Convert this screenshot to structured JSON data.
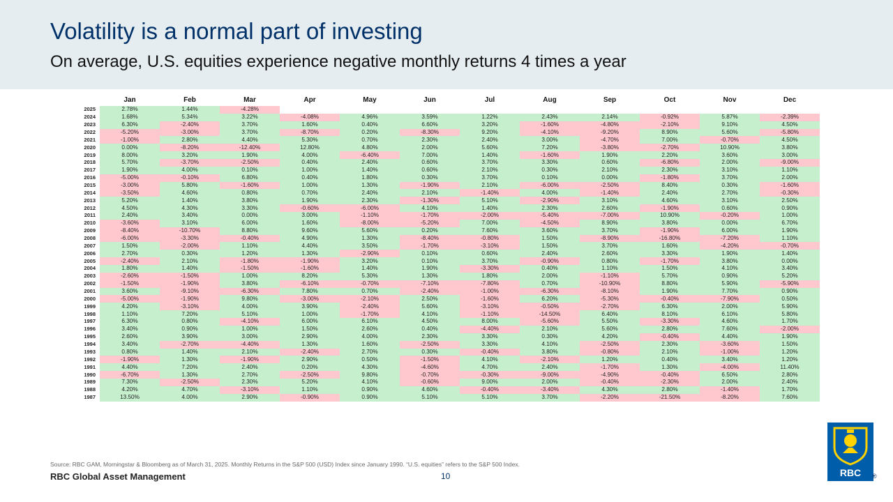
{
  "header": {
    "title": "Volatility is a normal part of investing",
    "subtitle": "On average, U.S. equities experience negative monthly returns 4 times a year"
  },
  "table": {
    "months": [
      "Jan",
      "Feb",
      "Mar",
      "Apr",
      "May",
      "Jun",
      "Jul",
      "Aug",
      "Sep",
      "Oct",
      "Nov",
      "Dec"
    ],
    "rows": [
      {
        "year": "2025",
        "values": [
          "2.78%",
          "1.44%",
          "-4.28%",
          null,
          null,
          null,
          null,
          null,
          null,
          null,
          null,
          null
        ]
      },
      {
        "year": "2024",
        "values": [
          "1.68%",
          "5.34%",
          "3.22%",
          "-4.08%",
          "4.96%",
          "3.59%",
          "1.22%",
          "2.43%",
          "2.14%",
          "-0.92%",
          "5.87%",
          "-2.39%"
        ]
      },
      {
        "year": "2023",
        "values": [
          "6.30%",
          "-2.40%",
          "3.70%",
          "1.60%",
          "0.40%",
          "6.60%",
          "3.20%",
          "-1.60%",
          "-4.80%",
          "-2.10%",
          "9.10%",
          "4.50%"
        ]
      },
      {
        "year": "2022",
        "values": [
          "-5.20%",
          "-3.00%",
          "3.70%",
          "-8.70%",
          "0.20%",
          "-8.30%",
          "9.20%",
          "-4.10%",
          "-9.20%",
          "8.90%",
          "5.60%",
          "-5.80%"
        ]
      },
      {
        "year": "2021",
        "values": [
          "-1.00%",
          "2.80%",
          "4.40%",
          "5.30%",
          "0.70%",
          "2.30%",
          "2.40%",
          "3.00%",
          "-4.70%",
          "7.00%",
          "-0.70%",
          "4.50%"
        ]
      },
      {
        "year": "2020",
        "values": [
          "0.00%",
          "-8.20%",
          "-12.40%",
          "12.80%",
          "4.80%",
          "2.00%",
          "5.60%",
          "7.20%",
          "-3.80%",
          "-2.70%",
          "10.90%",
          "3.80%"
        ]
      },
      {
        "year": "2019",
        "values": [
          "8.00%",
          "3.20%",
          "1.90%",
          "4.00%",
          "-6.40%",
          "7.00%",
          "1.40%",
          "-1.60%",
          "1.90%",
          "2.20%",
          "3.60%",
          "3.00%"
        ]
      },
      {
        "year": "2018",
        "values": [
          "5.70%",
          "-3.70%",
          "-2.50%",
          "0.40%",
          "2.40%",
          "0.60%",
          "3.70%",
          "3.30%",
          "0.60%",
          "-6.80%",
          "2.00%",
          "-9.00%"
        ]
      },
      {
        "year": "2017",
        "values": [
          "1.90%",
          "4.00%",
          "0.10%",
          "1.00%",
          "1.40%",
          "0.60%",
          "2.10%",
          "0.30%",
          "2.10%",
          "2.30%",
          "3.10%",
          "1.10%"
        ]
      },
      {
        "year": "2016",
        "values": [
          "-5.00%",
          "-0.10%",
          "6.80%",
          "0.40%",
          "1.80%",
          "0.30%",
          "3.70%",
          "0.10%",
          "0.00%",
          "-1.80%",
          "3.70%",
          "2.00%"
        ]
      },
      {
        "year": "2015",
        "values": [
          "-3.00%",
          "5.80%",
          "-1.60%",
          "1.00%",
          "1.30%",
          "-1.90%",
          "2.10%",
          "-6.00%",
          "-2.50%",
          "8.40%",
          "0.30%",
          "-1.60%"
        ]
      },
      {
        "year": "2014",
        "values": [
          "-3.50%",
          "4.60%",
          "0.80%",
          "0.70%",
          "2.40%",
          "2.10%",
          "-1.40%",
          "4.00%",
          "-1.40%",
          "2.40%",
          "2.70%",
          "-0.30%"
        ]
      },
      {
        "year": "2013",
        "values": [
          "5.20%",
          "1.40%",
          "3.80%",
          "1.90%",
          "2.30%",
          "-1.30%",
          "5.10%",
          "-2.90%",
          "3.10%",
          "4.60%",
          "3.10%",
          "2.50%"
        ]
      },
      {
        "year": "2012",
        "values": [
          "4.50%",
          "4.30%",
          "3.30%",
          "-0.60%",
          "-6.00%",
          "4.10%",
          "1.40%",
          "2.30%",
          "2.60%",
          "-1.90%",
          "0.60%",
          "0.90%"
        ]
      },
      {
        "year": "2011",
        "values": [
          "2.40%",
          "3.40%",
          "0.00%",
          "3.00%",
          "-1.10%",
          "-1.70%",
          "-2.00%",
          "-5.40%",
          "-7.00%",
          "10.90%",
          "-0.20%",
          "1.00%"
        ]
      },
      {
        "year": "2010",
        "values": [
          "-3.60%",
          "3.10%",
          "6.00%",
          "1.60%",
          "-8.00%",
          "-5.20%",
          "7.00%",
          "-4.50%",
          "8.90%",
          "3.80%",
          "0.00%",
          "6.70%"
        ]
      },
      {
        "year": "2009",
        "values": [
          "-8.40%",
          "-10.70%",
          "8.80%",
          "9.60%",
          "5.60%",
          "0.20%",
          "7.60%",
          "3.60%",
          "3.70%",
          "-1.90%",
          "6.00%",
          "1.90%"
        ]
      },
      {
        "year": "2008",
        "values": [
          "-6.00%",
          "-3.30%",
          "-0.40%",
          "4.90%",
          "1.30%",
          "-8.40%",
          "-0.80%",
          "1.50%",
          "-8.90%",
          "-16.80%",
          "-7.20%",
          "1.10%"
        ]
      },
      {
        "year": "2007",
        "values": [
          "1.50%",
          "-2.00%",
          "1.10%",
          "4.40%",
          "3.50%",
          "-1.70%",
          "-3.10%",
          "1.50%",
          "3.70%",
          "1.60%",
          "-4.20%",
          "-0.70%"
        ]
      },
      {
        "year": "2006",
        "values": [
          "2.70%",
          "0.30%",
          "1.20%",
          "1.30%",
          "-2.90%",
          "0.10%",
          "0.60%",
          "2.40%",
          "2.60%",
          "3.30%",
          "1.90%",
          "1.40%"
        ]
      },
      {
        "year": "2005",
        "values": [
          "-2.40%",
          "2.10%",
          "-1.80%",
          "-1.90%",
          "3.20%",
          "0.10%",
          "3.70%",
          "-0.90%",
          "0.80%",
          "-1.70%",
          "3.80%",
          "0.00%"
        ]
      },
      {
        "year": "2004",
        "values": [
          "1.80%",
          "1.40%",
          "-1.50%",
          "-1.60%",
          "1.40%",
          "1.90%",
          "-3.30%",
          "0.40%",
          "1.10%",
          "1.50%",
          "4.10%",
          "3.40%"
        ]
      },
      {
        "year": "2003",
        "values": [
          "-2.60%",
          "-1.50%",
          "1.00%",
          "8.20%",
          "5.30%",
          "1.30%",
          "1.80%",
          "2.00%",
          "-1.10%",
          "5.70%",
          "0.90%",
          "5.20%"
        ]
      },
      {
        "year": "2002",
        "values": [
          "-1.50%",
          "-1.90%",
          "3.80%",
          "-6.10%",
          "-0.70%",
          "-7.10%",
          "-7.80%",
          "0.70%",
          "-10.90%",
          "8.80%",
          "5.90%",
          "-5.90%"
        ]
      },
      {
        "year": "2001",
        "values": [
          "3.60%",
          "-9.10%",
          "-6.30%",
          "7.80%",
          "0.70%",
          "-2.40%",
          "-1.00%",
          "-6.30%",
          "-8.10%",
          "1.90%",
          "7.70%",
          "0.90%"
        ]
      },
      {
        "year": "2000",
        "values": [
          "-5.00%",
          "-1.90%",
          "9.80%",
          "-3.00%",
          "-2.10%",
          "2.50%",
          "-1.60%",
          "6.20%",
          "-5.30%",
          "-0.40%",
          "-7.90%",
          "0.50%"
        ]
      },
      {
        "year": "1999",
        "values": [
          "4.20%",
          "-3.10%",
          "4.00%",
          "3.90%",
          "-2.40%",
          "5.60%",
          "-3.10%",
          "-0.50%",
          "-2.70%",
          "6.30%",
          "2.00%",
          "5.90%"
        ]
      },
      {
        "year": "1998",
        "values": [
          "1.10%",
          "7.20%",
          "5.10%",
          "1.00%",
          "-1.70%",
          "4.10%",
          "-1.10%",
          "-14.50%",
          "6.40%",
          "8.10%",
          "6.10%",
          "5.80%"
        ]
      },
      {
        "year": "1997",
        "values": [
          "6.30%",
          "0.80%",
          "-4.10%",
          "6.00%",
          "6.10%",
          "4.50%",
          "8.00%",
          "-5.60%",
          "5.50%",
          "-3.30%",
          "4.60%",
          "1.70%"
        ]
      },
      {
        "year": "1996",
        "values": [
          "3.40%",
          "0.90%",
          "1.00%",
          "1.50%",
          "2.60%",
          "0.40%",
          "-4.40%",
          "2.10%",
          "5.60%",
          "2.80%",
          "7.60%",
          "-2.00%"
        ]
      },
      {
        "year": "1995",
        "values": [
          "2.60%",
          "3.90%",
          "3.00%",
          "2.90%",
          "4.00%",
          "2.30%",
          "3.30%",
          "0.30%",
          "4.20%",
          "-0.40%",
          "4.40%",
          "1.90%"
        ]
      },
      {
        "year": "1994",
        "values": [
          "3.40%",
          "-2.70%",
          "-4.40%",
          "1.30%",
          "1.60%",
          "-2.50%",
          "3.30%",
          "4.10%",
          "-2.50%",
          "2.30%",
          "-3.60%",
          "1.50%"
        ]
      },
      {
        "year": "1993",
        "values": [
          "0.80%",
          "1.40%",
          "2.10%",
          "-2.40%",
          "2.70%",
          "0.30%",
          "-0.40%",
          "3.80%",
          "-0.80%",
          "2.10%",
          "-1.00%",
          "1.20%"
        ]
      },
      {
        "year": "1992",
        "values": [
          "-1.90%",
          "1.30%",
          "-1.90%",
          "2.90%",
          "0.50%",
          "-1.50%",
          "4.10%",
          "-2.10%",
          "1.20%",
          "0.40%",
          "3.40%",
          "1.20%"
        ]
      },
      {
        "year": "1991",
        "values": [
          "4.40%",
          "7.20%",
          "2.40%",
          "0.20%",
          "4.30%",
          "-4.60%",
          "4.70%",
          "2.40%",
          "-1.70%",
          "1.30%",
          "-4.00%",
          "11.40%"
        ]
      },
      {
        "year": "1990",
        "values": [
          "-6.70%",
          "1.30%",
          "2.70%",
          "-2.50%",
          "9.80%",
          "-0.70%",
          "-0.30%",
          "-9.00%",
          "-4.90%",
          "-0.40%",
          "6.50%",
          "2.80%"
        ]
      },
      {
        "year": "1989",
        "values": [
          "7.30%",
          "-2.50%",
          "2.30%",
          "5.20%",
          "4.10%",
          "-0.60%",
          "9.00%",
          "2.00%",
          "-0.40%",
          "-2.30%",
          "2.00%",
          "2.40%"
        ]
      },
      {
        "year": "1988",
        "values": [
          "4.20%",
          "4.70%",
          "-3.10%",
          "1.10%",
          "0.90%",
          "4.60%",
          "-0.40%",
          "-3.40%",
          "4.30%",
          "2.80%",
          "-1.40%",
          "1.70%"
        ]
      },
      {
        "year": "1987",
        "values": [
          "13.50%",
          "4.00%",
          "2.90%",
          "-0.90%",
          "0.90%",
          "5.10%",
          "5.10%",
          "3.70%",
          "-2.20%",
          "-21.50%",
          "-8.20%",
          "7.60%"
        ]
      }
    ]
  },
  "colors": {
    "positive": "#c6efce",
    "negative": "#ffc7ce",
    "title": "#003168",
    "header_bg": "#e6edf1"
  },
  "footer": {
    "source": "Source: RBC GAM, Morningstar & Bloomberg as of March 31, 2025. Monthly Returns in the S&P 500 (USD) Index since January 1990. “U.S. equities” refers to the S&P 500 Index.",
    "brand": "RBC Global Asset Management",
    "page_number": "10"
  },
  "logo": {
    "icon": "rbc-lion-shield-icon",
    "text": "RBC",
    "registered": "®"
  }
}
